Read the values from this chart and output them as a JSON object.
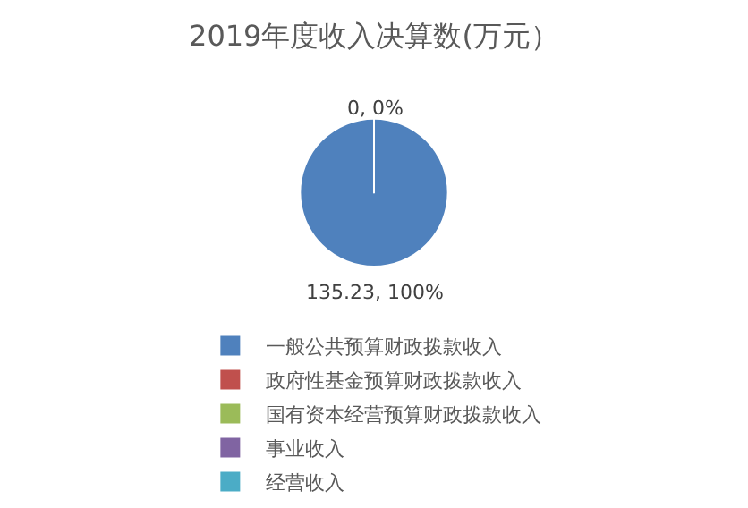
{
  "chart_data": {
    "type": "pie",
    "title": "2019年度收入决算数(万元）",
    "categories": [
      "一般公共预算财政拨款收入",
      "政府性基金预算财政拨款收入",
      "国有资本经营预算财政拨款收入",
      "事业收入",
      "经营收入"
    ],
    "values": [
      135.23,
      0,
      0,
      0,
      0
    ],
    "colors": [
      "#4f81bd",
      "#c0504d",
      "#9bbb59",
      "#8064a2",
      "#4bacc6"
    ],
    "value_labels": [
      "135.23, 100%",
      "0, 0%",
      null,
      null,
      null
    ],
    "legend": "bottom"
  }
}
